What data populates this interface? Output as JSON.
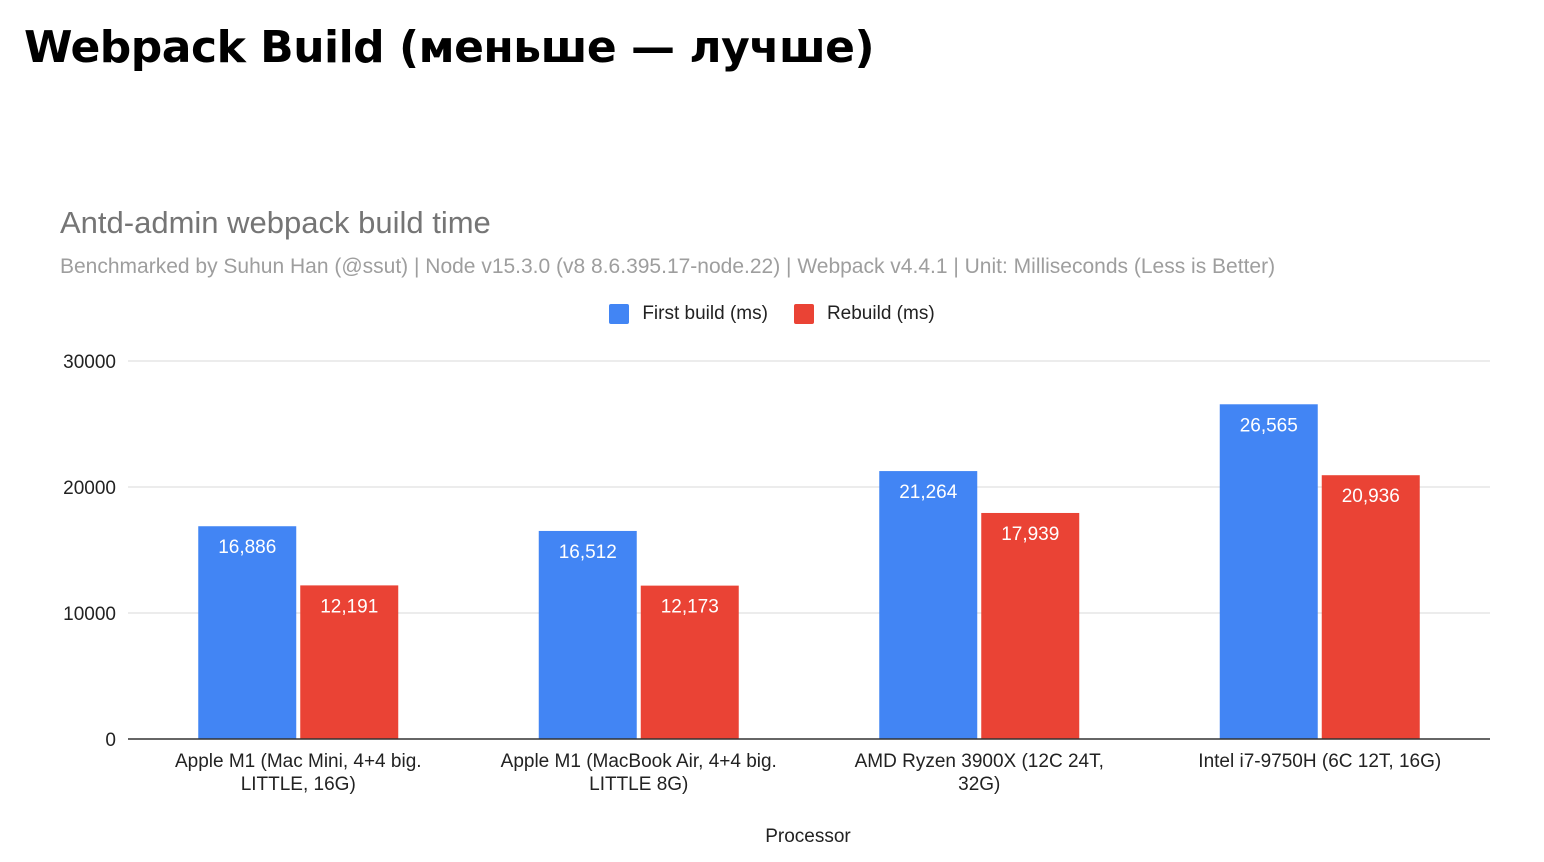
{
  "page": {
    "title": "Webpack Build (меньше — лучше)"
  },
  "chart_data": {
    "type": "bar",
    "title": "Antd-admin webpack build time",
    "subtitle": "Benchmarked by Suhun Han (@ssut) | Node v15.3.0 (v8 8.6.395.17-node.22) | Webpack v4.4.1 | Unit: Milliseconds (Less is Better)",
    "xlabel": "Processor",
    "ylabel": "",
    "ylim": [
      0,
      30000
    ],
    "yticks": [
      "0",
      "10000",
      "20000",
      "30000"
    ],
    "grid": true,
    "legend_position": "top-center",
    "categories": [
      [
        "Apple M1 (Mac Mini, 4+4 big.",
        "LITTLE, 16G)"
      ],
      [
        "Apple M1 (MacBook Air, 4+4 big.",
        "LITTLE 8G)"
      ],
      [
        "AMD Ryzen 3900X (12C 24T,",
        "32G)"
      ],
      [
        "Intel i7-9750H (6C 12T, 16G)"
      ]
    ],
    "series": [
      {
        "name": "First build (ms)",
        "color": "#4285f4",
        "values": [
          16886,
          16512,
          21264,
          26565
        ],
        "labels": [
          "16,886",
          "16,512",
          "21,264",
          "26,565"
        ]
      },
      {
        "name": "Rebuild (ms)",
        "color": "#ea4335",
        "values": [
          12191,
          12173,
          17939,
          20936
        ],
        "labels": [
          "12,191",
          "12,173",
          "17,939",
          "20,936"
        ]
      }
    ]
  }
}
